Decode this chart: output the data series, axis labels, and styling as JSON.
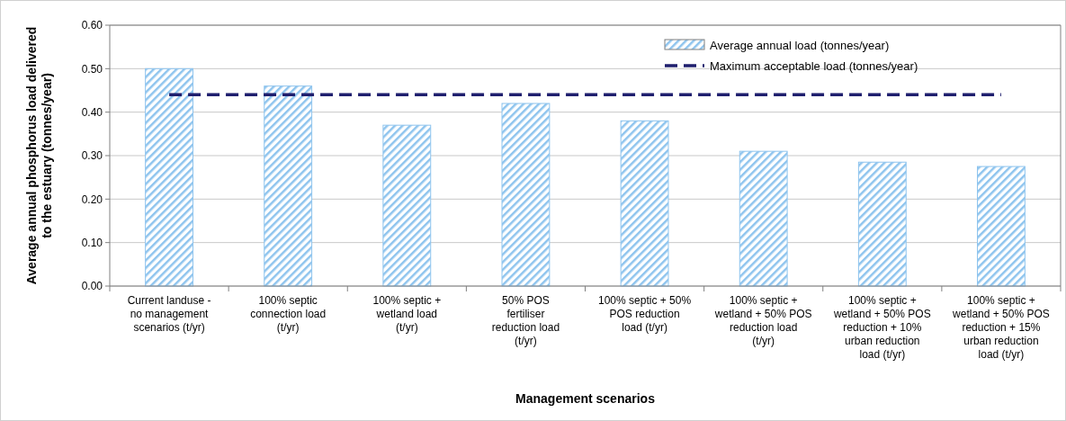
{
  "chart_data": {
    "type": "bar",
    "xlabel": "Management scenarios",
    "ylabel": "Average annual phosphorus load delivered to the estuary (tonnes/year)",
    "categories": [
      "Current landuse - no management scenarios (t/yr)",
      "100% septic connection load (t/yr)",
      "100% septic + wetland load (t/yr)",
      "50% POS fertiliser reduction load (t/yr)",
      "100% septic + 50% POS reduction load (t/yr)",
      "100% septic + wetland + 50% POS reduction load (t/yr)",
      "100% septic + wetland + 50% POS reduction + 10% urban reduction load (t/yr)",
      "100% septic + wetland + 50% POS reduction + 15% urban reduction load (t/yr)"
    ],
    "series": [
      {
        "name": "Average annual load (tonnes/year)",
        "color": "#8ec4ee",
        "values": [
          0.5,
          0.46,
          0.37,
          0.42,
          0.38,
          0.31,
          0.285,
          0.275
        ]
      },
      {
        "name": "Maximum acceptable load (tonnes/year)",
        "type": "line",
        "color": "#1f1f6e",
        "line_style": "dashed",
        "marker": "none",
        "values": [
          0.44,
          0.44,
          0.44,
          0.44,
          0.44,
          0.44,
          0.44,
          0.44
        ]
      }
    ],
    "ylim": [
      0,
      0.6
    ],
    "yticks": [
      {
        "value": 0,
        "label": "0.00"
      },
      {
        "value": 0.1,
        "label": "0.10"
      },
      {
        "value": 0.2,
        "label": "0.20"
      },
      {
        "value": 0.3,
        "label": "0.30"
      },
      {
        "value": 0.4,
        "label": "0.40"
      },
      {
        "value": 0.5,
        "label": "0.50"
      },
      {
        "value": 0.6,
        "label": "0.60"
      }
    ],
    "grid": "y",
    "legend": "top right"
  }
}
